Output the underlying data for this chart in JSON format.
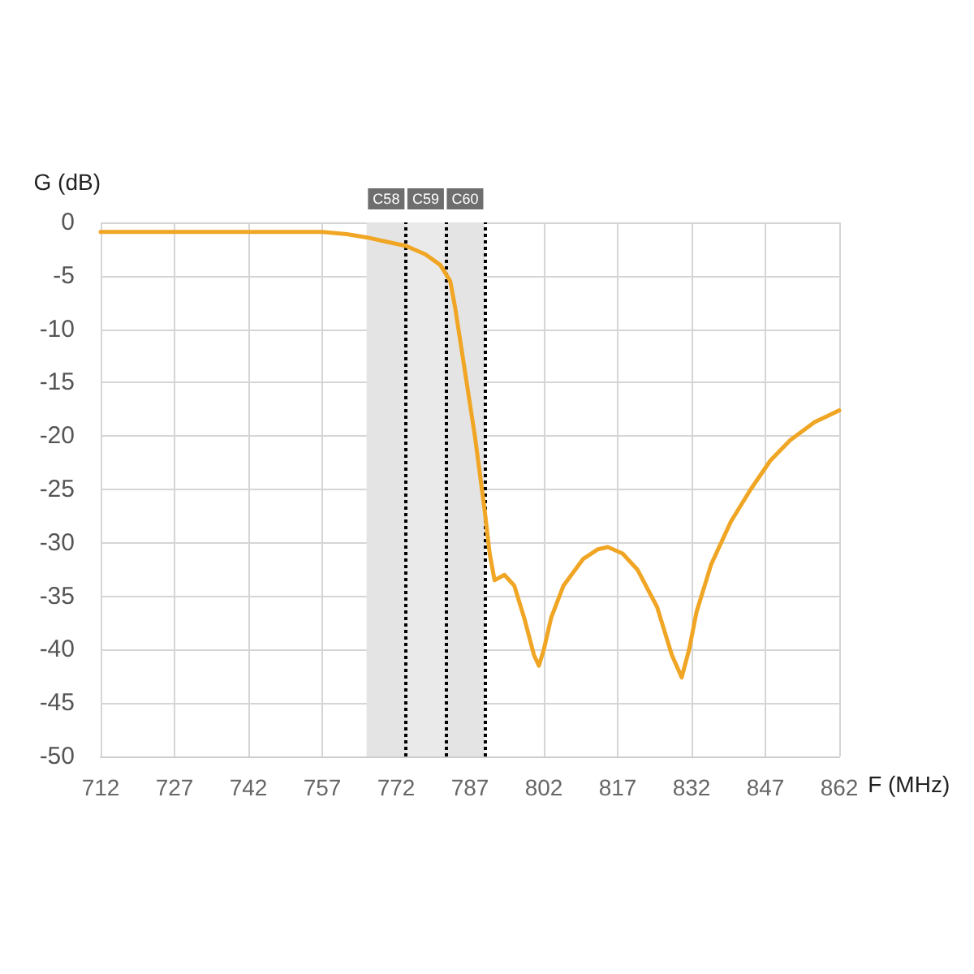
{
  "chart_data": {
    "type": "line",
    "xlabel": "F (MHz)",
    "ylabel": "G (dB)",
    "xlim": [
      712,
      862
    ],
    "xticks": [
      712,
      727,
      742,
      757,
      772,
      787,
      802,
      817,
      832,
      847,
      862
    ],
    "ylim": [
      -50,
      0
    ],
    "yticks": [
      0,
      -5,
      -10,
      -15,
      -20,
      -25,
      -30,
      -35,
      -40,
      -45,
      -50
    ],
    "grid": true,
    "marker": "none",
    "line_style": "solid",
    "series": [
      {
        "color": "#f0a624",
        "x": [
          712,
          730,
          750,
          757,
          762,
          766,
          770,
          774,
          778,
          781,
          783,
          784,
          786,
          788,
          790,
          791,
          792,
          794,
          796,
          798,
          800,
          801,
          802,
          803.5,
          806,
          810,
          813,
          815,
          818,
          821,
          825,
          828,
          830,
          831.5,
          833,
          836,
          840,
          844,
          848,
          852,
          857,
          862
        ],
        "values": [
          -0.9,
          -0.9,
          -0.9,
          -0.9,
          -1.1,
          -1.4,
          -1.8,
          -2.2,
          -3,
          -4,
          -5.5,
          -8,
          -14,
          -20,
          -27,
          -31,
          -33.5,
          -33,
          -34,
          -37,
          -40.5,
          -41.5,
          -40,
          -37,
          -34,
          -31.5,
          -30.6,
          -30.4,
          -31,
          -32.5,
          -36,
          -40.5,
          -42.6,
          -40,
          -36.5,
          -32,
          -28,
          -25,
          -22.3,
          -20.4,
          -18.7,
          -17.6
        ]
      }
    ],
    "bands": [
      {
        "axis": "x",
        "from": 766,
        "to": 774,
        "label": "C58",
        "color": "#e4e4e4"
      },
      {
        "axis": "x",
        "from": 774,
        "to": 782,
        "label": "C59",
        "color": "#eaeaea"
      },
      {
        "axis": "x",
        "from": 782,
        "to": 790,
        "label": "C60",
        "color": "#e4e4e4"
      }
    ],
    "ref_lines": [
      {
        "axis": "x",
        "value": 774,
        "line_style": "dotted",
        "color": "#000000"
      },
      {
        "axis": "x",
        "value": 782,
        "line_style": "dotted",
        "color": "#000000"
      },
      {
        "axis": "x",
        "value": 790,
        "line_style": "dotted",
        "color": "#000000"
      }
    ]
  }
}
